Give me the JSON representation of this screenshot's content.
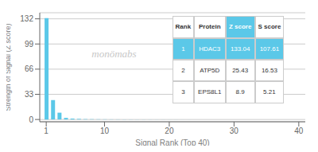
{
  "chart_data": {
    "type": "bar",
    "x": [
      1,
      2,
      3,
      4,
      5,
      6,
      7,
      8,
      9,
      10,
      11,
      12,
      13,
      14,
      15,
      16,
      17,
      18,
      19,
      20,
      21,
      22,
      23,
      24,
      25,
      26,
      27,
      28,
      29,
      30,
      31,
      32,
      33,
      34,
      35,
      36,
      37,
      38,
      39,
      40
    ],
    "values": [
      133.04,
      25.43,
      8.9,
      2.1,
      1.2,
      0.8,
      0.5,
      0.4,
      0.3,
      0.25,
      0.2,
      0.18,
      0.15,
      0.12,
      0.1,
      0.09,
      0.08,
      0.07,
      0.06,
      0.05,
      0.05,
      0.04,
      0.04,
      0.03,
      0.03,
      0.03,
      0.02,
      0.02,
      0.02,
      0.02,
      0.02,
      0.01,
      0.01,
      0.01,
      0.01,
      0.01,
      0.01,
      0.01,
      0.01,
      0.01
    ],
    "color": "#5bc8e8",
    "xlim": [
      0,
      41
    ],
    "xticks": [
      1,
      10,
      20,
      30,
      40
    ],
    "ylim": [
      -3,
      140
    ],
    "yticks": [
      0,
      33,
      66,
      99,
      132
    ],
    "xlabel": "Signal Rank (Top 40)",
    "ylabel": "Strength of Signal (Z score)",
    "grid": true,
    "annotations": [
      "monömabs"
    ],
    "table": [
      [
        "Rank",
        "Protein",
        "Z score",
        "S score"
      ],
      [
        "1",
        "HDAC3",
        "133.04",
        "107.61"
      ],
      [
        "2",
        "ATP5D",
        "25.43",
        "16.53"
      ],
      [
        "3",
        "EPS8L1",
        "8.9",
        "5.21"
      ]
    ]
  }
}
